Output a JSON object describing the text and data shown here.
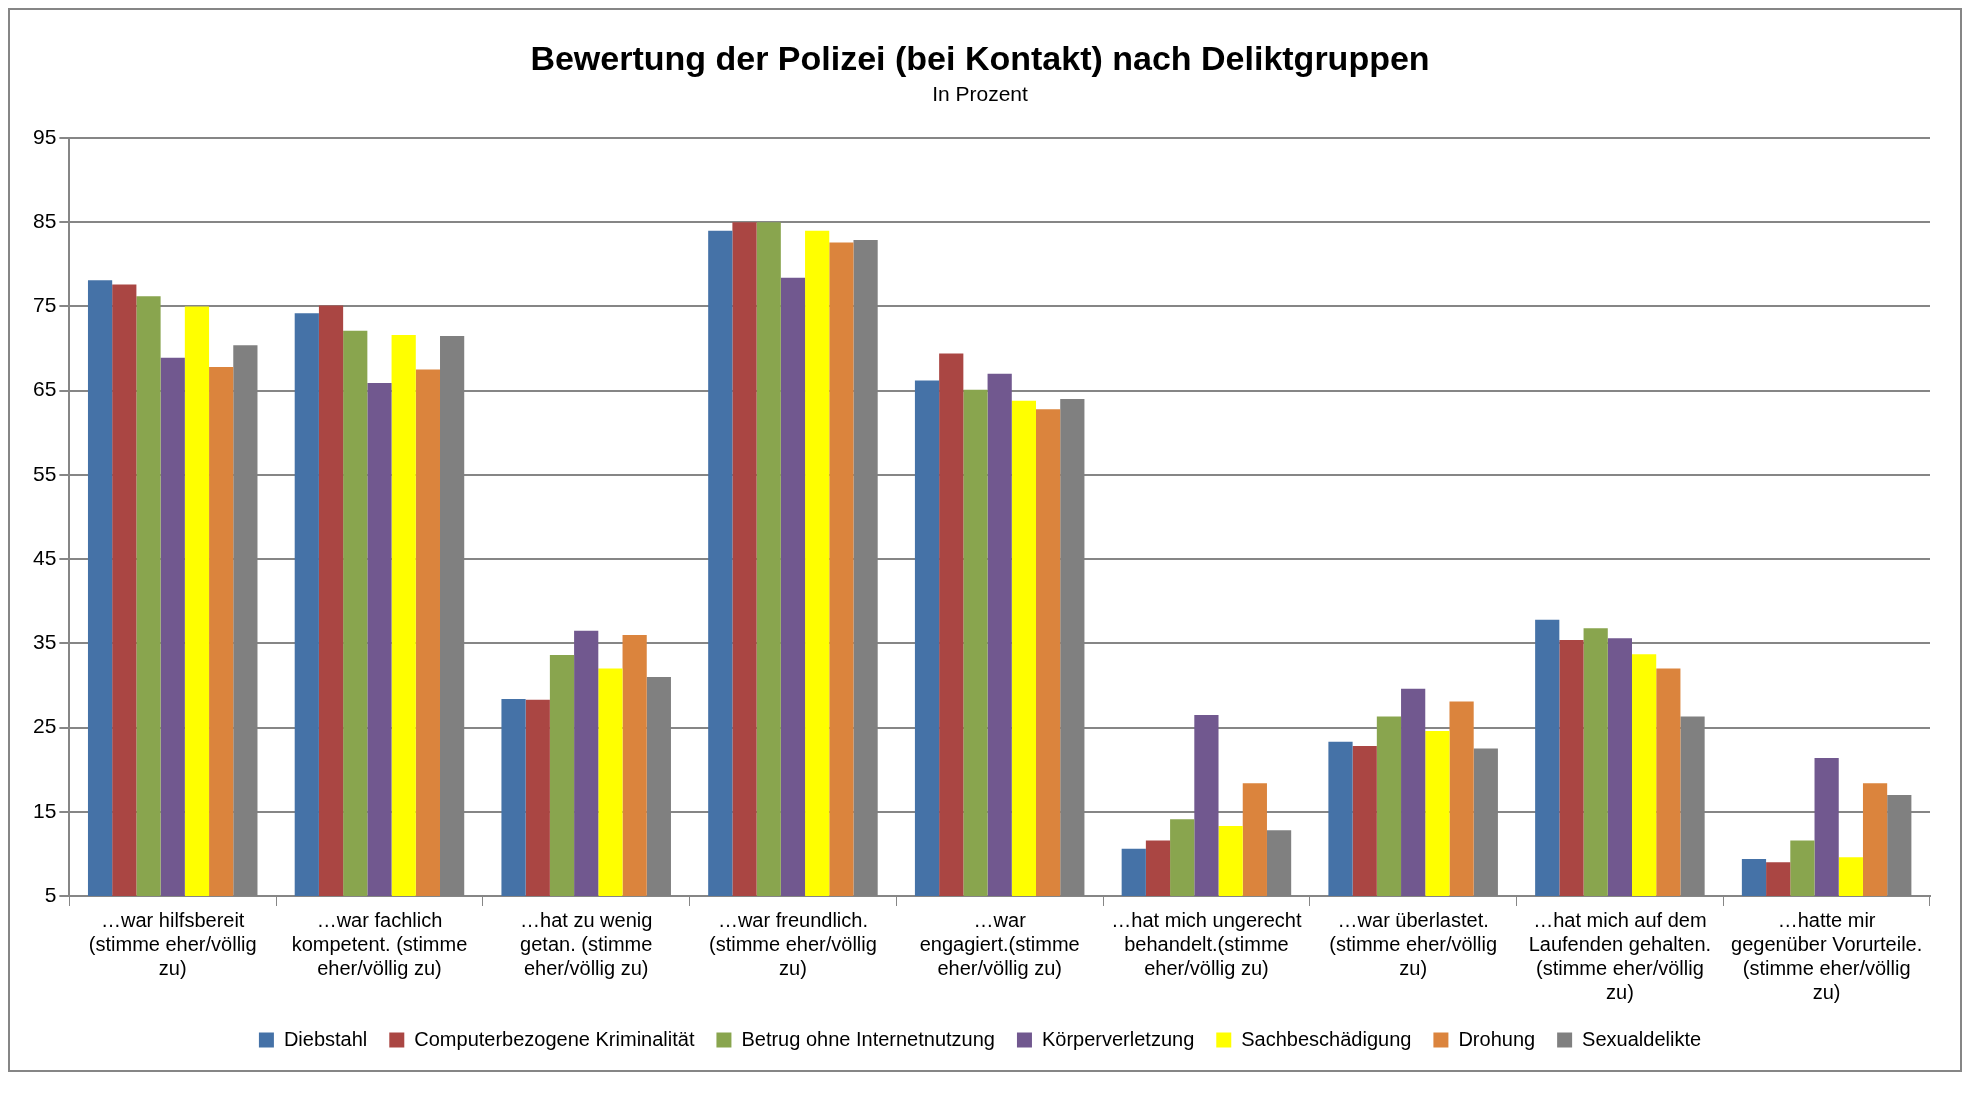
{
  "chart_data": {
    "type": "bar",
    "title": "Bewertung der Polizei (bei Kontakt) nach Deliktgruppen",
    "subtitle": "In Prozent",
    "categories": [
      "…war hilfsbereit (stimme eher/völlig zu)",
      "…war fachlich kompetent. (stimme eher/völlig zu)",
      "…hat zu wenig getan. (stimme eher/völlig zu)",
      "…war freundlich. (stimme eher/völlig zu)",
      "…war engagiert.(stimme eher/völlig zu)",
      "…hat mich ungerecht behandelt.(stimme eher/völlig zu)",
      "…war überlastet. (stimme eher/völlig zu)",
      "…hat mich auf dem Laufenden gehalten. (stimme eher/völlig zu)",
      "…hatte mir gegenüber Vorurteile. (stimme eher/völlig zu)"
    ],
    "series": [
      {
        "name": "Diebstahl",
        "color": "#4572a7",
        "values": [
          78.1,
          74.2,
          28.4,
          84.0,
          66.2,
          10.6,
          23.3,
          37.8,
          9.4
        ]
      },
      {
        "name": "Computerbezogene Kriminalität",
        "color": "#aa4643",
        "values": [
          77.6,
          75.1,
          28.3,
          85.0,
          69.4,
          11.6,
          22.8,
          35.4,
          9.0
        ]
      },
      {
        "name": "Betrug ohne Internetnutzung",
        "color": "#89a54e",
        "values": [
          76.2,
          72.1,
          33.6,
          85.0,
          65.1,
          14.1,
          26.3,
          36.8,
          11.6
        ]
      },
      {
        "name": "Körperverletzung",
        "color": "#71588f",
        "values": [
          68.9,
          65.9,
          36.5,
          78.4,
          67.0,
          26.5,
          29.6,
          35.6,
          21.4
        ]
      },
      {
        "name": "Sachbeschädigung",
        "color": "#ffff00",
        "values": [
          75.0,
          71.6,
          32.0,
          84.0,
          63.8,
          13.3,
          24.6,
          33.7,
          9.6
        ]
      },
      {
        "name": "Drohung",
        "color": "#db843d",
        "values": [
          67.8,
          67.5,
          36.0,
          82.6,
          62.8,
          18.4,
          28.1,
          32.0,
          18.4
        ]
      },
      {
        "name": "Sexualdelikte",
        "color": "#808080",
        "values": [
          70.4,
          71.5,
          31.0,
          82.9,
          64.0,
          12.8,
          22.5,
          26.3,
          17.0
        ]
      }
    ],
    "ylim": [
      5,
      95
    ],
    "yticks": [
      5,
      15,
      25,
      35,
      45,
      55,
      65,
      75,
      85,
      95
    ],
    "grid": "y",
    "legend": "bottom"
  }
}
